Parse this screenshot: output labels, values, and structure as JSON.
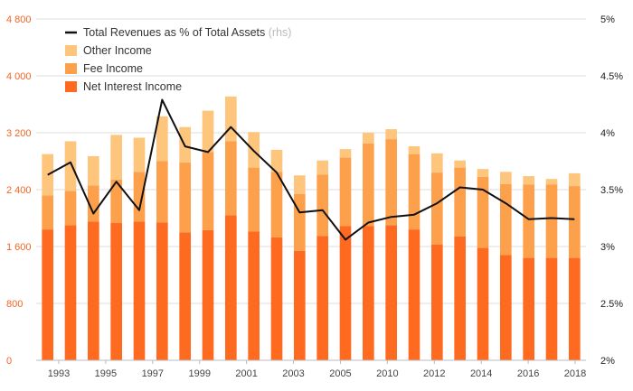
{
  "chart_data": {
    "type": "bar",
    "stacked": true,
    "categories": [
      "1993",
      "1994",
      "1995",
      "1996",
      "1997",
      "1998",
      "1999",
      "2000",
      "2001",
      "2002",
      "2003",
      "2004",
      "2005",
      "2006",
      "2007",
      "2008",
      "2009",
      "2010",
      "2011",
      "2012",
      "2013",
      "2014",
      "2015",
      "2016"
    ],
    "x_tick_labels": [
      "1993",
      "1995",
      "1997",
      "1999",
      "2001",
      "2003",
      "2005",
      "2010",
      "2012",
      "2014",
      "2016",
      "2018"
    ],
    "series": [
      {
        "name": "Net Interest Income",
        "color": "#ff6a21",
        "values": [
          1840,
          1900,
          1950,
          1930,
          1950,
          1940,
          1800,
          1830,
          2040,
          1810,
          1730,
          1540,
          1750,
          1890,
          1890,
          1900,
          1840,
          1630,
          1740,
          1580,
          1480,
          1440,
          1440,
          1440
        ]
      },
      {
        "name": "Fee Income",
        "color": "#fca04c",
        "values": [
          480,
          480,
          510,
          610,
          700,
          860,
          980,
          1100,
          1040,
          900,
          920,
          800,
          860,
          960,
          1160,
          1210,
          1060,
          1010,
          970,
          1000,
          1000,
          1030,
          1030,
          1010
        ]
      },
      {
        "name": "Other Income",
        "color": "#fec57c",
        "values": [
          580,
          700,
          410,
          630,
          480,
          630,
          500,
          580,
          630,
          500,
          310,
          260,
          200,
          120,
          150,
          140,
          110,
          270,
          100,
          110,
          170,
          120,
          80,
          180
        ]
      }
    ],
    "line_series": {
      "name": "Total Revenues as % of Total Assets",
      "suffix": "(rhs)",
      "color": "#111111",
      "axis": "right",
      "values": [
        3.63,
        3.74,
        3.29,
        3.57,
        3.32,
        4.29,
        3.88,
        3.83,
        4.05,
        3.84,
        3.65,
        3.3,
        3.32,
        3.06,
        3.21,
        3.26,
        3.28,
        3.38,
        3.52,
        3.5,
        3.38,
        3.24,
        3.25,
        3.24
      ]
    },
    "y_left": {
      "ticks": [
        0,
        800,
        1600,
        2400,
        3200,
        4000,
        4800
      ],
      "tick_labels": [
        "0",
        "800",
        "1 600",
        "2 400",
        "3 200",
        "4 000",
        "4 800"
      ],
      "ylim": [
        0,
        4800
      ]
    },
    "y_right": {
      "ticks": [
        2,
        2.5,
        3,
        3.5,
        4,
        4.5,
        5
      ],
      "tick_labels": [
        "2%",
        "2.5%",
        "3%",
        "3.5%",
        "4%",
        "4.5%",
        "5%"
      ],
      "ylim": [
        2,
        5
      ]
    },
    "legend": {
      "placement": "top-left",
      "items": [
        {
          "label": "Total Revenues as % of Total Assets",
          "suffix": "(rhs)",
          "kind": "line",
          "color": "#111111"
        },
        {
          "label": "Other Income",
          "kind": "box",
          "color": "#fec57c"
        },
        {
          "label": "Fee Income",
          "kind": "box",
          "color": "#fca04c"
        },
        {
          "label": "Net Interest Income",
          "kind": "box",
          "color": "#ff6a21"
        }
      ]
    },
    "grid": true
  }
}
